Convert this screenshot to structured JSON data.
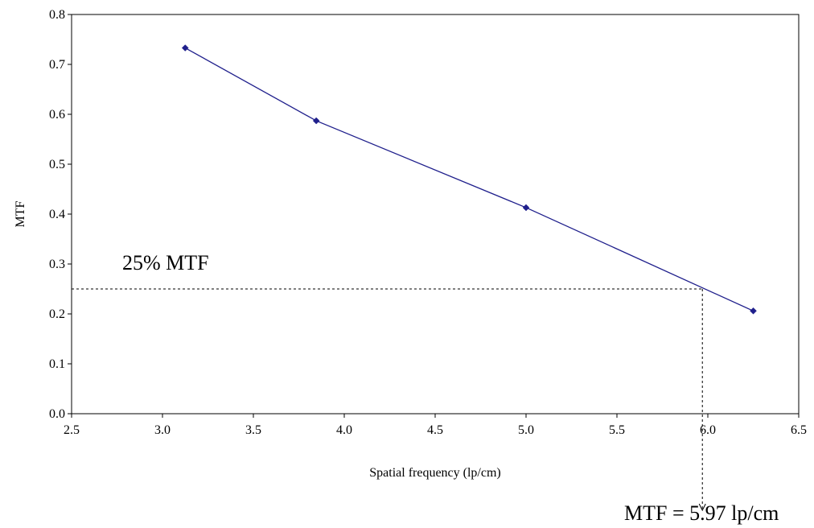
{
  "chart_data": {
    "type": "line",
    "xlabel": "Spatial frequency (lp/cm)",
    "ylabel": "MTF",
    "xlim": [
      2.5,
      6.5
    ],
    "ylim": [
      0.0,
      0.8
    ],
    "x_ticks": [
      "2.5",
      "3.0",
      "3.5",
      "4.0",
      "4.5",
      "5.0",
      "5.5",
      "6.0",
      "6.5"
    ],
    "y_ticks": [
      "0.0",
      "0.1",
      "0.2",
      "0.3",
      "0.4",
      "0.5",
      "0.6",
      "0.7",
      "0.8"
    ],
    "grid": false,
    "series": [
      {
        "x": [
          3.125,
          3.846,
          5.0,
          6.25
        ],
        "y": [
          0.733,
          0.587,
          0.413,
          0.206
        ],
        "color": "#1f1f8c",
        "marker": "diamond"
      }
    ],
    "reference": {
      "mtf_level": 0.25,
      "frequency": 5.97
    },
    "annotations": {
      "threshold_label": "25% MTF",
      "result_label": "MTF = 5.97 lp/cm"
    }
  }
}
